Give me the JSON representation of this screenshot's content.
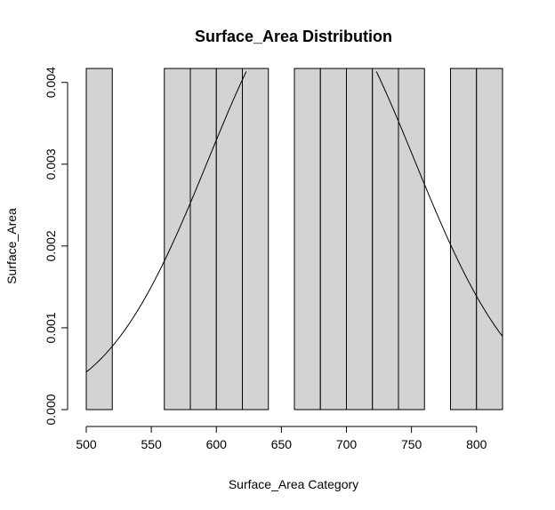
{
  "chart_data": {
    "type": "bar",
    "title": "Surface_Area Distribution",
    "xlabel": "Surface_Area Category",
    "ylabel": "Surface_Area",
    "bar_color": "#d3d3d3",
    "outline_color": "#000000",
    "x_ticks": [
      500,
      550,
      600,
      650,
      700,
      750,
      800
    ],
    "y_ticks": [
      0.0,
      0.001,
      0.002,
      0.003,
      0.004
    ],
    "y_tick_labels": [
      "0.000",
      "0.001",
      "0.002",
      "0.003",
      "0.004"
    ],
    "xlim": [
      500,
      820
    ],
    "ylim": [
      0,
      0.00416
    ],
    "grid": false,
    "bins": [
      {
        "start": 500,
        "end": 520,
        "value": 0.00417
      },
      {
        "start": 560,
        "end": 580,
        "value": 0.00417
      },
      {
        "start": 580,
        "end": 600,
        "value": 0.00417
      },
      {
        "start": 600,
        "end": 620,
        "value": 0.00417
      },
      {
        "start": 620,
        "end": 640,
        "value": 0.00417
      },
      {
        "start": 660,
        "end": 680,
        "value": 0.00417
      },
      {
        "start": 680,
        "end": 700,
        "value": 0.00417
      },
      {
        "start": 700,
        "end": 720,
        "value": 0.00417
      },
      {
        "start": 720,
        "end": 740,
        "value": 0.00417
      },
      {
        "start": 740,
        "end": 760,
        "value": 0.00417
      },
      {
        "start": 780,
        "end": 800,
        "value": 0.00417
      },
      {
        "start": 800,
        "end": 820,
        "value": 0.00417
      }
    ],
    "density_curve": {
      "mean": 673,
      "sd": 79
    }
  }
}
